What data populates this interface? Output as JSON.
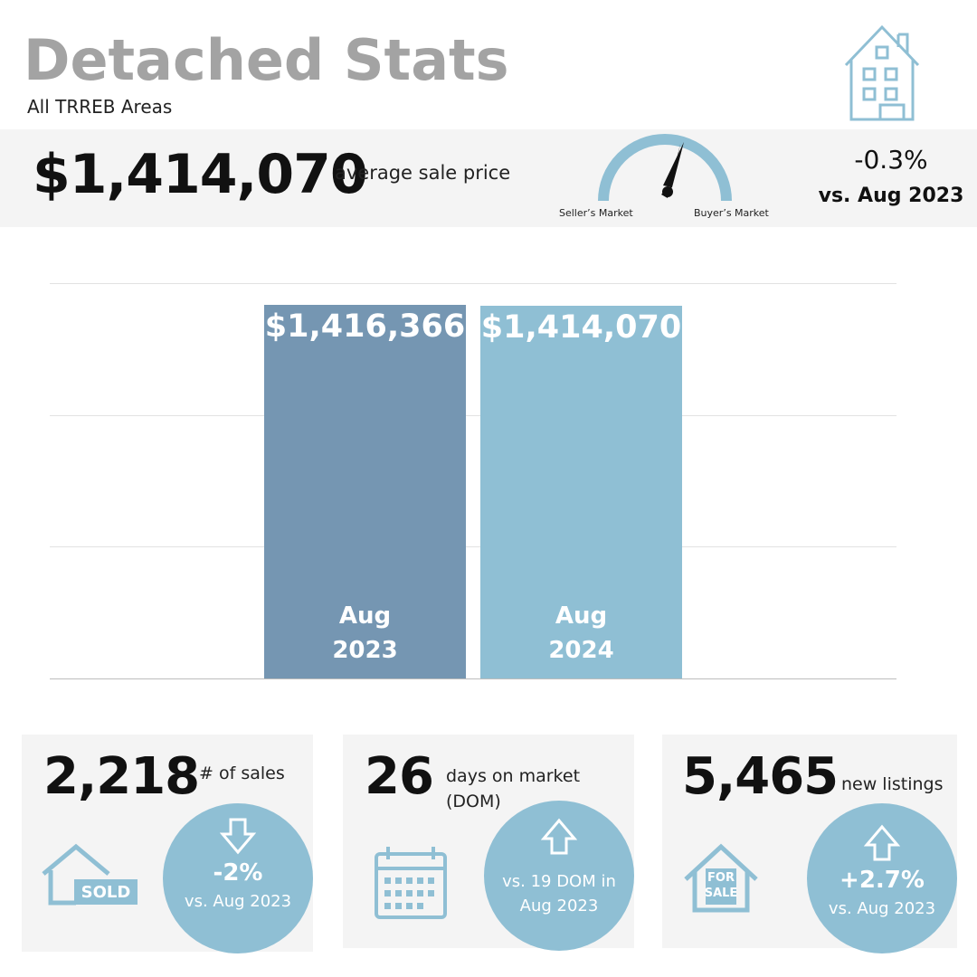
{
  "header": {
    "title": "Detached Stats",
    "subtitle": "All TRREB Areas"
  },
  "summary": {
    "price": "$1,414,070",
    "price_label": "average sale price",
    "gauge_left": "Seller’s Market",
    "gauge_right": "Buyer’s Market",
    "change": "-0.3%",
    "change_label": "vs. Aug 2023"
  },
  "chart_data": {
    "type": "bar",
    "categories": [
      "Aug 2023",
      "Aug 2024"
    ],
    "values": [
      1416366,
      1414070
    ],
    "value_labels": [
      "$1,416,366",
      "$1,414,070"
    ],
    "colors": [
      "#7596b2",
      "#8fbfd4"
    ],
    "ylim": [
      0,
      1500000
    ],
    "yticks": [
      0,
      500000,
      1000000,
      1500000
    ],
    "grid": true
  },
  "cards": [
    {
      "value": "2,218",
      "label": "# of sales",
      "icon_text": "SOLD",
      "change": "-2%",
      "change_label": "vs. Aug 2023"
    },
    {
      "value": "26",
      "label": "days on market (DOM)",
      "change_label": "vs. 19 DOM in Aug 2023"
    },
    {
      "value": "5,465",
      "label": "new listings",
      "icon_text": "FOR SALE",
      "change": "+2.7%",
      "change_label": "vs. Aug 2023"
    }
  ]
}
